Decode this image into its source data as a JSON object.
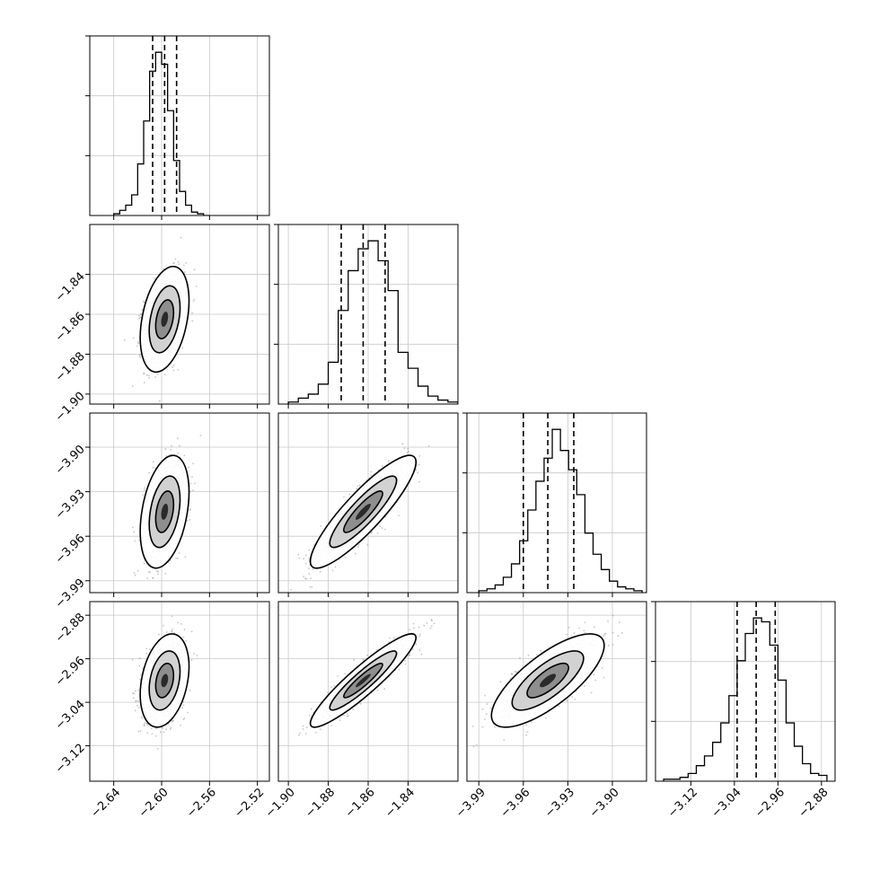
{
  "chart_data": {
    "type": "corner",
    "parameters": 4,
    "colors": {
      "line": "#000000",
      "grid": "#c8c8c8",
      "points": "#7f7f7f"
    },
    "grid": true,
    "quantile_lines": "dashed",
    "hist2d_contour_levels": 3,
    "scatter_points_present": true,
    "axis_ranges": [
      [
        -2.66,
        -2.51
      ],
      [
        -1.905,
        -1.815
      ],
      [
        -3.998,
        -3.877
      ],
      [
        -3.185,
        -2.855
      ]
    ],
    "tick_labels": [
      [
        "−2.64",
        "−2.60",
        "−2.56",
        "−2.52"
      ],
      [
        "−1.90",
        "−1.88",
        "−1.86",
        "−1.84"
      ],
      [
        "−3.99",
        "−3.96",
        "−3.93",
        "−3.90"
      ],
      [
        "−3.12",
        "−3.04",
        "−2.96",
        "−2.88"
      ]
    ],
    "tick_values": [
      [
        -2.64,
        -2.6,
        -2.56,
        -2.52
      ],
      [
        -1.9,
        -1.88,
        -1.86,
        -1.84
      ],
      [
        -3.99,
        -3.96,
        -3.93,
        -3.9
      ],
      [
        -3.12,
        -3.04,
        -2.96,
        -2.88
      ]
    ],
    "quantiles": [
      [
        -2.6075,
        -2.5975,
        -2.5875
      ],
      [
        -1.8735,
        -1.8625,
        -1.8515
      ],
      [
        -3.96,
        -3.9435,
        -3.926
      ],
      [
        -3.035,
        -3.0,
        -2.965
      ]
    ],
    "histograms": [
      {
        "edges": [
          -2.64,
          -2.635,
          -2.63,
          -2.625,
          -2.62,
          -2.615,
          -2.61,
          -2.605,
          -2.6,
          -2.595,
          -2.59,
          -2.585,
          -2.58,
          -2.575,
          -2.57,
          -2.565,
          -2.56
        ],
        "counts": [
          1,
          3,
          6,
          12,
          30,
          55,
          84,
          95,
          88,
          61,
          32,
          14,
          6,
          2,
          1,
          0
        ]
      },
      {
        "edges": [
          -1.9,
          -1.895,
          -1.89,
          -1.885,
          -1.88,
          -1.875,
          -1.87,
          -1.865,
          -1.86,
          -1.855,
          -1.85,
          -1.845,
          -1.84,
          -1.835,
          -1.83,
          -1.825,
          -1.82,
          -1.815
        ],
        "counts": [
          1,
          3,
          5,
          10,
          21,
          47,
          67,
          78,
          82,
          72,
          57,
          26,
          18,
          9,
          4,
          2,
          1
        ]
      },
      {
        "edges": [
          -3.99,
          -3.9845,
          -3.979,
          -3.9735,
          -3.968,
          -3.9625,
          -3.957,
          -3.9515,
          -3.946,
          -3.9405,
          -3.935,
          -3.9295,
          -3.924,
          -3.9185,
          -3.913,
          -3.9075,
          -3.902,
          -3.8965,
          -3.891,
          -3.8855,
          -3.88
        ],
        "counts": [
          1,
          2,
          4,
          8,
          15,
          27,
          43,
          58,
          70,
          85,
          74,
          64,
          51,
          31,
          20,
          12,
          6,
          3,
          2,
          1
        ]
      },
      {
        "edges": [
          -3.17,
          -3.155,
          -3.14,
          -3.125,
          -3.11,
          -3.095,
          -3.08,
          -3.065,
          -3.05,
          -3.035,
          -3.02,
          -3.005,
          -2.99,
          -2.975,
          -2.96,
          -2.945,
          -2.93,
          -2.915,
          -2.9,
          -2.885,
          -2.87
        ],
        "counts": [
          1,
          1,
          2,
          4,
          8,
          13,
          20,
          30,
          44,
          62,
          76,
          84,
          82,
          70,
          52,
          30,
          18,
          9,
          4,
          3
        ]
      }
    ],
    "joint_distributions": [
      {
        "row": 1,
        "col": 0,
        "mean": [
          -2.5975,
          -1.8625
        ],
        "sd": [
          0.0083,
          0.0108
        ],
        "corr": 0.35
      },
      {
        "row": 2,
        "col": 0,
        "mean": [
          -2.5975,
          -3.9435
        ],
        "sd": [
          0.0083,
          0.0155
        ],
        "corr": 0.35
      },
      {
        "row": 2,
        "col": 1,
        "mean": [
          -1.8625,
          -3.9435
        ],
        "sd": [
          0.0108,
          0.0155
        ],
        "corr": 0.88
      },
      {
        "row": 3,
        "col": 0,
        "mean": [
          -2.5975,
          -3.0
        ],
        "sd": [
          0.0083,
          0.035
        ],
        "corr": 0.3
      },
      {
        "row": 3,
        "col": 1,
        "mean": [
          -1.8625,
          -3.0
        ],
        "sd": [
          0.0108,
          0.035
        ],
        "corr": 0.92
      },
      {
        "row": 3,
        "col": 2,
        "mean": [
          -3.9435,
          -3.0
        ],
        "sd": [
          0.0155,
          0.035
        ],
        "corr": 0.75
      }
    ]
  }
}
